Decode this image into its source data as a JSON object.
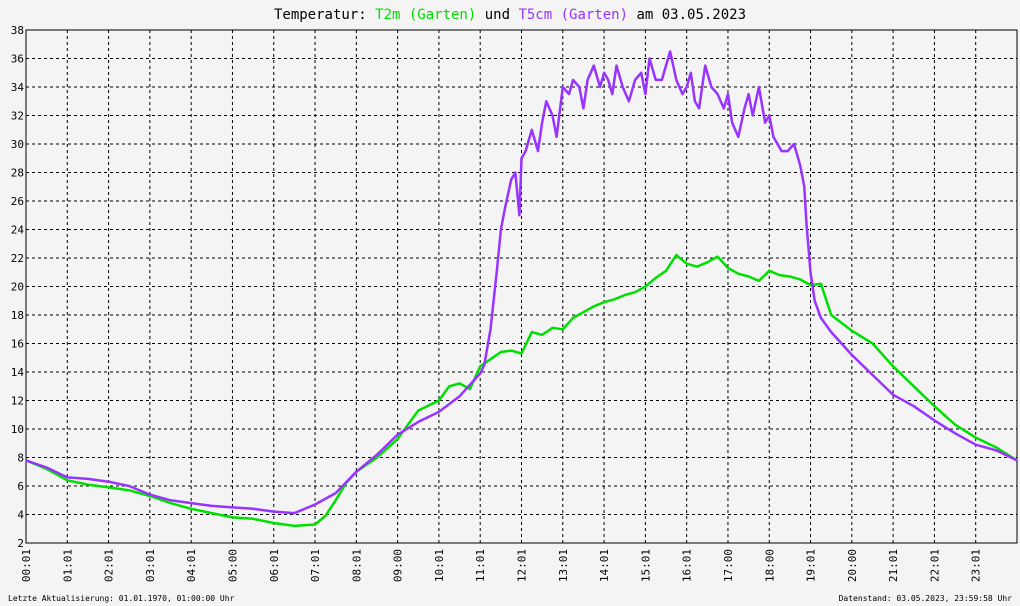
{
  "chart_data": {
    "type": "line",
    "title": {
      "prefix": "Temperatur: ",
      "series1_label": "T2m (Garten)",
      "connector": " und ",
      "series2_label": "T5cm (Garten)",
      "suffix": " am 03.05.2023"
    },
    "xlabel": "",
    "ylabel": "",
    "x_tick_labels": [
      "00:01",
      "01:01",
      "02:01",
      "03:01",
      "04:01",
      "05:00",
      "06:01",
      "07:01",
      "08:01",
      "09:00",
      "10:01",
      "11:01",
      "12:01",
      "13:01",
      "14:01",
      "15:01",
      "16:01",
      "17:00",
      "18:00",
      "19:01",
      "20:00",
      "21:01",
      "22:01",
      "23:01"
    ],
    "x_range_hours": [
      0,
      24
    ],
    "ylim": [
      2,
      38
    ],
    "y_ticks": [
      2,
      4,
      6,
      8,
      10,
      12,
      14,
      16,
      18,
      20,
      22,
      24,
      26,
      28,
      30,
      32,
      34,
      36,
      38
    ],
    "grid": true,
    "series": [
      {
        "name": "T2m (Garten)",
        "color": "#00e000",
        "x_hours": [
          0,
          0.5,
          1,
          1.5,
          2,
          2.5,
          3,
          3.5,
          4,
          4.5,
          5,
          5.5,
          6,
          6.5,
          7,
          7.25,
          7.5,
          7.75,
          8,
          8.5,
          9,
          9.25,
          9.5,
          10,
          10.25,
          10.5,
          10.75,
          11,
          11.5,
          11.75,
          12,
          12.25,
          12.5,
          12.75,
          13,
          13.25,
          13.5,
          13.75,
          14,
          14.25,
          14.5,
          14.75,
          15,
          15.25,
          15.5,
          15.75,
          16,
          16.25,
          16.5,
          16.75,
          17,
          17.25,
          17.5,
          17.75,
          18,
          18.25,
          18.5,
          18.75,
          19,
          19.25,
          19.5,
          20,
          20.5,
          21,
          21.5,
          22,
          22.5,
          23,
          23.5,
          24
        ],
        "values": [
          7.8,
          7.2,
          6.4,
          6.1,
          5.9,
          5.7,
          5.3,
          4.8,
          4.4,
          4.1,
          3.8,
          3.7,
          3.4,
          3.2,
          3.3,
          3.9,
          5.0,
          6.2,
          7.0,
          8.0,
          9.3,
          10.3,
          11.3,
          12.0,
          13.0,
          13.2,
          12.8,
          14.4,
          15.4,
          15.5,
          15.3,
          16.8,
          16.6,
          17.1,
          17.0,
          17.8,
          18.2,
          18.6,
          18.9,
          19.1,
          19.4,
          19.6,
          20.0,
          20.6,
          21.1,
          22.2,
          21.6,
          21.4,
          21.7,
          22.1,
          21.3,
          20.9,
          20.7,
          20.4,
          21.1,
          20.8,
          20.7,
          20.5,
          20.1,
          20.2,
          18.0,
          16.9,
          16.0,
          14.4,
          13.0,
          11.6,
          10.3,
          9.4,
          8.7,
          7.8
        ]
      },
      {
        "name": "T5cm (Garten)",
        "color": "#9933ff",
        "x_hours": [
          0,
          0.5,
          1,
          1.5,
          2,
          2.5,
          3,
          3.5,
          4,
          4.5,
          5,
          5.5,
          6,
          6.5,
          7,
          7.5,
          8,
          8.5,
          9,
          9.5,
          10,
          10.5,
          11,
          11.1,
          11.25,
          11.4,
          11.5,
          11.6,
          11.75,
          11.85,
          11.95,
          12,
          12.1,
          12.25,
          12.4,
          12.5,
          12.6,
          12.75,
          12.85,
          13,
          13.15,
          13.25,
          13.4,
          13.5,
          13.6,
          13.75,
          13.9,
          14,
          14.1,
          14.2,
          14.3,
          14.45,
          14.6,
          14.75,
          14.9,
          15,
          15.1,
          15.25,
          15.4,
          15.5,
          15.6,
          15.75,
          15.9,
          16,
          16.1,
          16.2,
          16.3,
          16.45,
          16.6,
          16.75,
          16.9,
          17,
          17.1,
          17.25,
          17.4,
          17.5,
          17.6,
          17.75,
          17.9,
          18,
          18.1,
          18.2,
          18.3,
          18.45,
          18.6,
          18.75,
          18.85,
          18.9,
          19,
          19.1,
          19.25,
          19.5,
          19.75,
          20,
          20.5,
          21,
          21.5,
          22,
          22.5,
          23,
          23.5,
          24
        ],
        "values": [
          7.8,
          7.3,
          6.6,
          6.5,
          6.3,
          6.0,
          5.4,
          5.0,
          4.8,
          4.6,
          4.5,
          4.4,
          4.2,
          4.1,
          4.7,
          5.5,
          7.0,
          8.2,
          9.6,
          10.5,
          11.2,
          12.3,
          13.9,
          14.5,
          17.0,
          21.0,
          24.0,
          25.5,
          27.5,
          28.0,
          25.0,
          29.0,
          29.5,
          31.0,
          29.5,
          31.5,
          33.0,
          32.0,
          30.5,
          34.0,
          33.5,
          34.5,
          34.0,
          32.5,
          34.5,
          35.5,
          34.0,
          35.0,
          34.5,
          33.5,
          35.5,
          34.0,
          33.0,
          34.5,
          35.0,
          33.5,
          36.0,
          34.5,
          34.5,
          35.5,
          36.5,
          34.5,
          33.5,
          34.0,
          35.0,
          33.0,
          32.5,
          35.5,
          34.0,
          33.5,
          32.5,
          33.5,
          31.5,
          30.5,
          32.5,
          33.5,
          32.0,
          34.0,
          31.5,
          32.0,
          30.5,
          30.0,
          29.5,
          29.5,
          30.0,
          28.5,
          27.0,
          24.5,
          21.0,
          19.0,
          17.8,
          16.8,
          16.0,
          15.2,
          13.8,
          12.4,
          11.6,
          10.6,
          9.7,
          8.9,
          8.5,
          7.8
        ]
      }
    ]
  },
  "footer": {
    "left": "Letzte Aktualisierung: 01.01.1970, 01:00:00 Uhr",
    "right": "Datenstand: 03.05.2023, 23:59:58 Uhr"
  },
  "colors": {
    "background": "#f4f4f4",
    "t2m": "#00e000",
    "t5cm": "#9933ff",
    "grid": "#000000"
  }
}
